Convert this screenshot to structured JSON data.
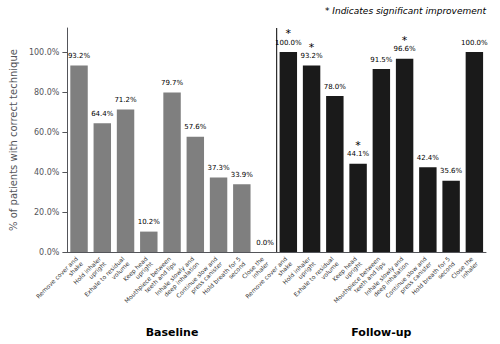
{
  "chart_data": {
    "type": "bar",
    "categories": [
      "Remove cover and\nshake",
      "Hold inhaler\nupright",
      "Exhale to residual\nvolume",
      "Keep head\nupright",
      "Mouthpiece between\nteeth and lips",
      "Inhale slowly and\ndeep inhalation",
      "Continue slow and\npress canister",
      "Hold breath for 5\nsecond",
      "Close the\ninhaler",
      "Remove cover and\nshake",
      "Hold inhaler\nupright",
      "Exhale to residual\nvolume",
      "Keep head\nupright",
      "Mouthpiece between\nteeth and lips",
      "Inhale slowly and\ndeep inhalation",
      "Continue slow and\npress canister",
      "Hold breath for 5\nsecond",
      "Close the\ninhaler"
    ],
    "series": [
      {
        "name": "Baseline",
        "color": "#7f7f7f",
        "values": [
          93.2,
          64.4,
          71.2,
          10.2,
          79.7,
          57.6,
          37.3,
          33.9,
          0.0,
          null,
          null,
          null,
          null,
          null,
          null,
          null,
          null,
          null
        ],
        "value_labels": [
          "93.2%",
          "64.4%",
          "71.2%",
          "10.2%",
          "79.7%",
          "57.6%",
          "37.3%",
          "33.9%",
          "0.0%",
          null,
          null,
          null,
          null,
          null,
          null,
          null,
          null,
          null
        ]
      },
      {
        "name": "Follow-up",
        "color": "#1a1a1a",
        "values": [
          null,
          null,
          null,
          null,
          null,
          null,
          null,
          null,
          null,
          100.0,
          93.2,
          78.0,
          44.1,
          91.5,
          96.6,
          42.4,
          35.6,
          100.0
        ],
        "value_labels": [
          null,
          null,
          null,
          null,
          null,
          null,
          null,
          null,
          null,
          "100.0%",
          "93.2%",
          "78.0%",
          "44.1%",
          "91.5%",
          "96.6%",
          "42.4%",
          "35.6%",
          "100.0%"
        ],
        "stars": [
          null,
          null,
          null,
          null,
          null,
          null,
          null,
          null,
          null,
          "*",
          "*",
          null,
          "*",
          null,
          "*",
          null,
          null,
          null
        ]
      }
    ],
    "ylabel": "% of patients with correct technique",
    "annotation": "* Indicates significant improvement",
    "ylim": [
      0,
      112
    ],
    "yticks": [
      {
        "value": 0.0,
        "label": "0.0%"
      },
      {
        "value": 20.0,
        "label": "20.0%"
      },
      {
        "value": 40.0,
        "label": "40.0%"
      },
      {
        "value": 60.0,
        "label": "60.0%"
      },
      {
        "value": 80.0,
        "label": "80.0%"
      },
      {
        "value": 100.0,
        "label": "100.0%"
      }
    ],
    "data_labels": true,
    "grid": false
  }
}
